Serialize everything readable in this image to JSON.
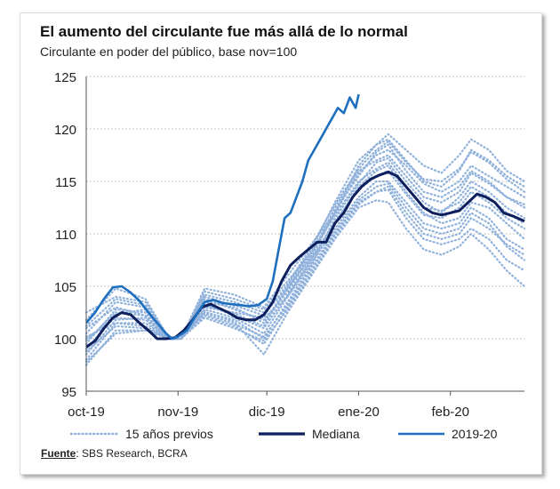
{
  "title": "El aumento del circulante fue más allá de lo normal",
  "subtitle": "Circulante en poder del público, base nov=100",
  "source_label": "Fuente",
  "source_text": ": SBS Research, BCRA",
  "colors": {
    "median": "#0d1f5c",
    "current": "#1f6fbf",
    "previous": "#8fb1db",
    "grid": "#b3b3b3",
    "text": "#222222"
  },
  "chart_data": {
    "type": "line",
    "ylim": [
      95,
      125
    ],
    "yticks": [
      95,
      100,
      105,
      110,
      115,
      120,
      125
    ],
    "xlim": [
      0,
      148
    ],
    "xticks": [
      {
        "label": "oct-19",
        "x": 0
      },
      {
        "label": "nov-19",
        "x": 31
      },
      {
        "label": "dic-19",
        "x": 61
      },
      {
        "label": "ene-20",
        "x": 92
      },
      {
        "label": "feb-20",
        "x": 123
      }
    ],
    "grid": true,
    "legend_position": "bottom",
    "legend": [
      "15 años previos",
      "Mediana",
      "2019-20"
    ],
    "series": [
      {
        "name": "2019-20",
        "style": "solid-medium",
        "x": [
          0,
          3,
          6,
          9,
          12,
          15,
          18,
          21,
          24,
          27,
          29,
          31,
          34,
          37,
          40,
          43,
          46,
          49,
          52,
          55,
          58,
          61,
          63,
          65,
          67,
          69,
          71,
          73,
          75,
          77,
          79,
          81,
          83,
          85,
          87,
          89,
          91,
          92
        ],
        "y": [
          101.5,
          102.5,
          103.8,
          104.9,
          105.0,
          104.4,
          103.6,
          102.5,
          101.5,
          100.5,
          100.0,
          100.2,
          100.8,
          102.2,
          103.5,
          103.7,
          103.4,
          103.3,
          103.2,
          103.1,
          103.2,
          103.8,
          105.5,
          108.5,
          111.5,
          112.0,
          113.5,
          115.0,
          117.0,
          118.0,
          119.0,
          120.0,
          121.0,
          122.0,
          121.5,
          123.0,
          122.0,
          123.3
        ]
      },
      {
        "name": "Mediana",
        "style": "solid-dark",
        "x": [
          0,
          3,
          6,
          9,
          12,
          15,
          18,
          21,
          24,
          27,
          30,
          33,
          36,
          39,
          42,
          45,
          48,
          51,
          54,
          57,
          60,
          63,
          66,
          69,
          72,
          75,
          78,
          81,
          84,
          87,
          90,
          93,
          96,
          99,
          102,
          105,
          108,
          111,
          114,
          117,
          120,
          123,
          126,
          129,
          132,
          135,
          138,
          141,
          144,
          148
        ],
        "y": [
          99.2,
          99.8,
          101.0,
          102.0,
          102.5,
          102.3,
          101.5,
          100.8,
          100.0,
          100.0,
          100.1,
          100.8,
          101.8,
          103.0,
          103.3,
          102.9,
          102.5,
          102.0,
          101.8,
          101.8,
          102.3,
          103.5,
          105.5,
          107.0,
          107.8,
          108.5,
          109.2,
          109.2,
          111.0,
          112.0,
          113.5,
          114.5,
          115.2,
          115.6,
          115.9,
          115.5,
          114.5,
          113.5,
          112.5,
          112.0,
          111.8,
          112.0,
          112.2,
          113.0,
          113.8,
          113.5,
          113.0,
          112.0,
          111.7,
          111.2
        ]
      },
      {
        "name": "15 años previos",
        "style": "dotted",
        "x": [
          0,
          10,
          20,
          28,
          32,
          40,
          50,
          60,
          68,
          76,
          84,
          92,
          98,
          102,
          108,
          114,
          120,
          126,
          130,
          136,
          142,
          148
        ],
        "y": [
          98.0,
          101.5,
          101.5,
          100.0,
          100.0,
          102.8,
          102.0,
          100.5,
          104.0,
          107.5,
          111.0,
          114.5,
          116.0,
          116.5,
          114.0,
          112.0,
          111.0,
          111.5,
          113.0,
          112.5,
          111.0,
          109.5
        ]
      },
      {
        "name": "15 años previos",
        "style": "dotted",
        "x": [
          0,
          10,
          20,
          28,
          32,
          40,
          50,
          60,
          68,
          76,
          84,
          92,
          98,
          102,
          108,
          114,
          120,
          126,
          130,
          136,
          142,
          148
        ],
        "y": [
          97.5,
          100.8,
          100.8,
          100.0,
          100.0,
          102.2,
          101.2,
          99.5,
          103.0,
          106.5,
          110.0,
          113.0,
          114.0,
          114.5,
          112.0,
          110.0,
          109.5,
          110.0,
          111.5,
          110.5,
          109.0,
          108.0
        ]
      },
      {
        "name": "15 años previos",
        "style": "dotted",
        "x": [
          0,
          10,
          20,
          28,
          32,
          40,
          50,
          60,
          68,
          76,
          84,
          92,
          98,
          102,
          108,
          114,
          120,
          126,
          130,
          136,
          142,
          148
        ],
        "y": [
          99.0,
          102.3,
          102.8,
          100.0,
          100.0,
          103.5,
          103.0,
          101.5,
          105.0,
          108.5,
          113.0,
          117.0,
          118.5,
          119.0,
          117.0,
          115.0,
          114.5,
          116.0,
          118.0,
          117.0,
          115.5,
          114.5
        ]
      },
      {
        "name": "15 años previos",
        "style": "dotted",
        "x": [
          0,
          10,
          20,
          28,
          32,
          40,
          50,
          60,
          68,
          76,
          84,
          92,
          98,
          102,
          108,
          114,
          120,
          126,
          130,
          136,
          142,
          148
        ],
        "y": [
          100.5,
          103.5,
          103.0,
          100.0,
          100.0,
          104.2,
          103.5,
          102.5,
          104.8,
          107.8,
          112.0,
          116.5,
          118.5,
          119.5,
          118.0,
          116.5,
          115.8,
          117.5,
          119.0,
          118.0,
          116.0,
          115.0
        ]
      },
      {
        "name": "15 años previos",
        "style": "dotted",
        "x": [
          0,
          10,
          20,
          28,
          32,
          40,
          50,
          60,
          68,
          76,
          84,
          92,
          98,
          102,
          108,
          114,
          120,
          126,
          130,
          136,
          142,
          148
        ],
        "y": [
          101.8,
          104.8,
          103.8,
          100.0,
          100.0,
          104.8,
          104.2,
          103.0,
          106.0,
          109.0,
          112.0,
          115.8,
          117.5,
          118.0,
          116.5,
          114.8,
          114.0,
          115.0,
          116.5,
          115.5,
          114.5,
          113.5
        ]
      },
      {
        "name": "15 años previos",
        "style": "dotted",
        "x": [
          0,
          10,
          20,
          28,
          32,
          40,
          50,
          60,
          68,
          76,
          84,
          92,
          98,
          102,
          108,
          114,
          120,
          126,
          130,
          136,
          142,
          148
        ],
        "y": [
          98.5,
          101.8,
          102.0,
          100.0,
          100.0,
          102.5,
          101.8,
          100.0,
          103.5,
          107.0,
          111.5,
          114.8,
          116.8,
          117.2,
          115.0,
          113.0,
          112.0,
          113.5,
          115.0,
          114.0,
          112.5,
          111.5
        ]
      },
      {
        "name": "15 años previos",
        "style": "dotted",
        "x": [
          0,
          10,
          20,
          28,
          32,
          40,
          50,
          60,
          68,
          76,
          84,
          92,
          98,
          102,
          108,
          114,
          120,
          126,
          130,
          136,
          142,
          148
        ],
        "y": [
          99.5,
          102.8,
          102.5,
          100.0,
          100.0,
          103.8,
          102.8,
          101.8,
          104.5,
          108.0,
          112.5,
          116.0,
          117.0,
          117.5,
          115.5,
          113.5,
          113.0,
          114.0,
          115.8,
          114.8,
          113.5,
          112.8
        ]
      },
      {
        "name": "15 años previos",
        "style": "dotted",
        "x": [
          0,
          10,
          20,
          28,
          32,
          40,
          50,
          60,
          68,
          76,
          84,
          92,
          98,
          102,
          108,
          114,
          120,
          126,
          130,
          136,
          142,
          148
        ],
        "y": [
          100.0,
          102.0,
          101.8,
          100.0,
          100.0,
          103.0,
          102.5,
          102.0,
          104.0,
          107.2,
          110.5,
          113.5,
          115.0,
          115.0,
          113.0,
          111.0,
          110.5,
          111.0,
          112.5,
          111.5,
          109.5,
          108.5
        ]
      },
      {
        "name": "15 años previos",
        "style": "dotted",
        "x": [
          0,
          10,
          20,
          28,
          32,
          40,
          50,
          60,
          68,
          76,
          84,
          92,
          98,
          102,
          108,
          114,
          120,
          126,
          130,
          136,
          142,
          148
        ],
        "y": [
          98.8,
          101.2,
          101.0,
          100.0,
          100.0,
          102.6,
          101.6,
          98.5,
          102.5,
          106.0,
          109.5,
          112.5,
          113.2,
          113.0,
          110.5,
          108.5,
          108.0,
          108.8,
          110.0,
          108.5,
          106.5,
          105.0
        ]
      },
      {
        "name": "15 años previos",
        "style": "dotted",
        "x": [
          0,
          10,
          20,
          28,
          32,
          40,
          50,
          60,
          68,
          76,
          84,
          92,
          98,
          102,
          108,
          114,
          120,
          126,
          130,
          136,
          142,
          148
        ],
        "y": [
          101.0,
          103.0,
          102.2,
          100.0,
          100.0,
          103.3,
          102.2,
          101.0,
          104.2,
          107.6,
          111.2,
          114.2,
          115.5,
          116.0,
          113.8,
          111.8,
          111.5,
          112.5,
          114.0,
          113.0,
          111.5,
          110.5
        ]
      },
      {
        "name": "15 años previos",
        "style": "dotted",
        "x": [
          0,
          10,
          20,
          28,
          32,
          40,
          50,
          60,
          68,
          76,
          84,
          92,
          98,
          102,
          108,
          114,
          120,
          126,
          130,
          136,
          142,
          148
        ],
        "y": [
          102.5,
          104.0,
          103.5,
          100.0,
          100.0,
          104.5,
          103.8,
          102.8,
          105.5,
          108.2,
          111.8,
          115.0,
          116.2,
          116.8,
          114.5,
          112.5,
          112.2,
          113.0,
          114.5,
          113.5,
          112.0,
          111.0
        ]
      },
      {
        "name": "15 años previos",
        "style": "dotted",
        "x": [
          0,
          10,
          20,
          28,
          32,
          40,
          50,
          60,
          68,
          76,
          84,
          92,
          98,
          102,
          108,
          114,
          120,
          126,
          130,
          136,
          142,
          148
        ],
        "y": [
          97.8,
          100.5,
          100.8,
          100.0,
          100.0,
          102.0,
          101.0,
          99.8,
          102.8,
          106.2,
          109.8,
          112.8,
          114.0,
          114.2,
          111.5,
          109.5,
          109.0,
          109.5,
          110.5,
          109.5,
          107.5,
          106.5
        ]
      },
      {
        "name": "15 años previos",
        "style": "dotted",
        "x": [
          0,
          10,
          20,
          28,
          32,
          40,
          50,
          60,
          68,
          76,
          84,
          92,
          98,
          102,
          108,
          114,
          120,
          126,
          130,
          136,
          142,
          148
        ],
        "y": [
          99.8,
          102.5,
          102.2,
          100.0,
          100.0,
          103.2,
          102.4,
          101.2,
          104.8,
          108.2,
          112.2,
          115.5,
          117.8,
          118.5,
          116.0,
          114.0,
          113.5,
          114.5,
          116.0,
          115.0,
          113.5,
          112.5
        ]
      },
      {
        "name": "15 años previos",
        "style": "dotted",
        "x": [
          0,
          10,
          20,
          28,
          32,
          40,
          50,
          60,
          68,
          76,
          84,
          92,
          98,
          102,
          108,
          114,
          120,
          126,
          130,
          136,
          142,
          148
        ],
        "y": [
          100.2,
          101.5,
          101.2,
          100.0,
          100.0,
          102.4,
          101.4,
          100.2,
          103.2,
          106.8,
          110.2,
          113.2,
          114.5,
          114.8,
          112.5,
          110.5,
          110.0,
          110.5,
          112.0,
          111.0,
          108.8,
          107.5
        ]
      },
      {
        "name": "15 años previos",
        "style": "dotted",
        "x": [
          0,
          10,
          20,
          28,
          32,
          40,
          50,
          60,
          68,
          76,
          84,
          92,
          98,
          102,
          108,
          114,
          120,
          126,
          130,
          136,
          142,
          148
        ],
        "y": [
          101.2,
          103.8,
          103.2,
          100.0,
          100.0,
          104.0,
          103.2,
          102.2,
          105.2,
          108.8,
          112.8,
          116.2,
          118.0,
          118.8,
          116.8,
          115.2,
          115.0,
          116.2,
          117.8,
          116.8,
          115.2,
          114.0
        ]
      }
    ]
  }
}
